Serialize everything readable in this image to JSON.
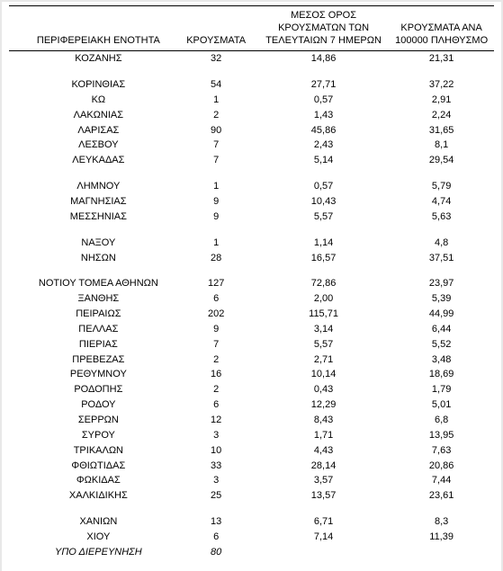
{
  "columns": {
    "region": "ΠΕΡΙΦΕΡΕΙΑΚΗ ΕΝΟΤΗΤΑ",
    "cases": "ΚΡΟΥΣΜΑΤΑ",
    "avg7": "ΜΕΣΟΣ ΟΡΟΣ ΚΡΟΥΣΜΑΤΩΝ ΤΩΝ ΤΕΛΕΥΤΑΙΩΝ 7 ΗΜΕΡΩΝ",
    "per100k": "ΚΡΟΥΣΜΑΤΑ ΑΝΑ 100000 ΠΛΗΘΥΣΜΟ"
  },
  "groups": [
    {
      "rows": [
        {
          "region": "ΚΟΖΑΝΗΣ",
          "cases": "32",
          "avg7": "14,86",
          "per100k": "21,31"
        }
      ]
    },
    {
      "rows": [
        {
          "region": "ΚΟΡΙΝΘΙΑΣ",
          "cases": "54",
          "avg7": "27,71",
          "per100k": "37,22"
        },
        {
          "region": "ΚΩ",
          "cases": "1",
          "avg7": "0,57",
          "per100k": "2,91"
        },
        {
          "region": "ΛΑΚΩΝΙΑΣ",
          "cases": "2",
          "avg7": "1,43",
          "per100k": "2,24"
        },
        {
          "region": "ΛΑΡΙΣΑΣ",
          "cases": "90",
          "avg7": "45,86",
          "per100k": "31,65"
        },
        {
          "region": "ΛΕΣΒΟΥ",
          "cases": "7",
          "avg7": "2,43",
          "per100k": "8,1"
        },
        {
          "region": "ΛΕΥΚΑΔΑΣ",
          "cases": "7",
          "avg7": "5,14",
          "per100k": "29,54"
        }
      ]
    },
    {
      "rows": [
        {
          "region": "ΛΗΜΝΟΥ",
          "cases": "1",
          "avg7": "0,57",
          "per100k": "5,79"
        },
        {
          "region": "ΜΑΓΝΗΣΙΑΣ",
          "cases": "9",
          "avg7": "10,43",
          "per100k": "4,74"
        },
        {
          "region": "ΜΕΣΣΗΝΙΑΣ",
          "cases": "9",
          "avg7": "5,57",
          "per100k": "5,63"
        }
      ]
    },
    {
      "rows": [
        {
          "region": "ΝΑΞΟΥ",
          "cases": "1",
          "avg7": "1,14",
          "per100k": "4,8"
        },
        {
          "region": "ΝΗΣΩΝ",
          "cases": "28",
          "avg7": "16,57",
          "per100k": "37,51"
        }
      ]
    },
    {
      "rows": [
        {
          "region": "ΝΟΤΙΟΥ ΤΟΜΕΑ ΑΘΗΝΩΝ",
          "cases": "127",
          "avg7": "72,86",
          "per100k": "23,97"
        },
        {
          "region": "ΞΑΝΘΗΣ",
          "cases": "6",
          "avg7": "2,00",
          "per100k": "5,39"
        },
        {
          "region": "ΠΕΙΡΑΙΩΣ",
          "cases": "202",
          "avg7": "115,71",
          "per100k": "44,99"
        },
        {
          "region": "ΠΕΛΛΑΣ",
          "cases": "9",
          "avg7": "3,14",
          "per100k": "6,44"
        },
        {
          "region": "ΠΙΕΡΙΑΣ",
          "cases": "7",
          "avg7": "5,57",
          "per100k": "5,52"
        },
        {
          "region": "ΠΡΕΒΕΖΑΣ",
          "cases": "2",
          "avg7": "2,71",
          "per100k": "3,48"
        },
        {
          "region": "ΡΕΘΥΜΝΟΥ",
          "cases": "16",
          "avg7": "10,14",
          "per100k": "18,69"
        },
        {
          "region": "ΡΟΔΟΠΗΣ",
          "cases": "2",
          "avg7": "0,43",
          "per100k": "1,79"
        },
        {
          "region": "ΡΟΔΟΥ",
          "cases": "6",
          "avg7": "12,29",
          "per100k": "5,01"
        },
        {
          "region": "ΣΕΡΡΩΝ",
          "cases": "12",
          "avg7": "8,43",
          "per100k": "6,8"
        },
        {
          "region": "ΣΥΡΟΥ",
          "cases": "3",
          "avg7": "1,71",
          "per100k": "13,95"
        },
        {
          "region": "ΤΡΙΚΑΛΩΝ",
          "cases": "10",
          "avg7": "4,43",
          "per100k": "7,63"
        },
        {
          "region": "ΦΘΙΩΤΙΔΑΣ",
          "cases": "33",
          "avg7": "28,14",
          "per100k": "20,86"
        },
        {
          "region": "ΦΩΚΙΔΑΣ",
          "cases": "3",
          "avg7": "3,57",
          "per100k": "7,44"
        },
        {
          "region": "ΧΑΛΚΙΔΙΚΗΣ",
          "cases": "25",
          "avg7": "13,57",
          "per100k": "23,61"
        }
      ]
    },
    {
      "rows": [
        {
          "region": "ΧΑΝΙΩΝ",
          "cases": "13",
          "avg7": "6,71",
          "per100k": "8,3"
        },
        {
          "region": "ΧΙΟΥ",
          "cases": "6",
          "avg7": "7,14",
          "per100k": "11,39"
        },
        {
          "region": "ΥΠΟ ΔΙΕΡΕΥΝΗΣΗ",
          "cases": "80",
          "avg7": "",
          "per100k": "",
          "italic": true
        }
      ]
    }
  ]
}
